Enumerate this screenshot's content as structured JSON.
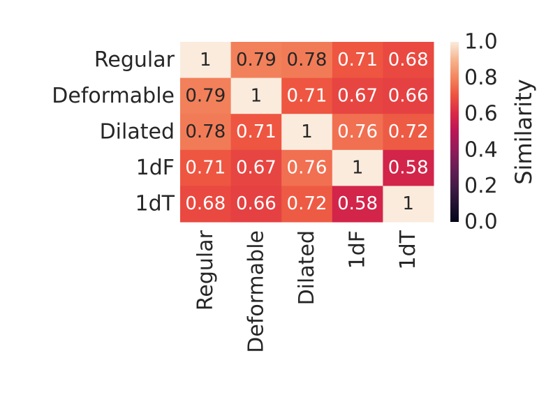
{
  "chart_data": {
    "type": "heatmap",
    "row_labels": [
      "Regular",
      "Deformable",
      "Dilated",
      "1dF",
      "1dT"
    ],
    "col_labels": [
      "Regular",
      "Deformable",
      "Dilated",
      "1dF",
      "1dT"
    ],
    "values": [
      [
        1,
        0.79,
        0.78,
        0.71,
        0.68
      ],
      [
        0.79,
        1,
        0.71,
        0.67,
        0.66
      ],
      [
        0.78,
        0.71,
        1,
        0.76,
        0.72
      ],
      [
        0.71,
        0.67,
        0.76,
        1,
        0.58
      ],
      [
        0.68,
        0.66,
        0.72,
        0.58,
        1
      ]
    ],
    "annotations": [
      [
        "1",
        "0.79",
        "0.78",
        "0.71",
        "0.68"
      ],
      [
        "0.79",
        "1",
        "0.71",
        "0.67",
        "0.66"
      ],
      [
        "0.78",
        "0.71",
        "1",
        "0.76",
        "0.72"
      ],
      [
        "0.71",
        "0.67",
        "0.76",
        "1",
        "0.58"
      ],
      [
        "0.68",
        "0.66",
        "0.72",
        "0.58",
        "1"
      ]
    ],
    "colorbar": {
      "label": "Similarity",
      "range": [
        0.0,
        1.0
      ],
      "ticks": [
        "0.0",
        "0.2",
        "0.4",
        "0.6",
        "0.8",
        "1.0"
      ],
      "colormap": "rocket"
    },
    "grid": false
  }
}
